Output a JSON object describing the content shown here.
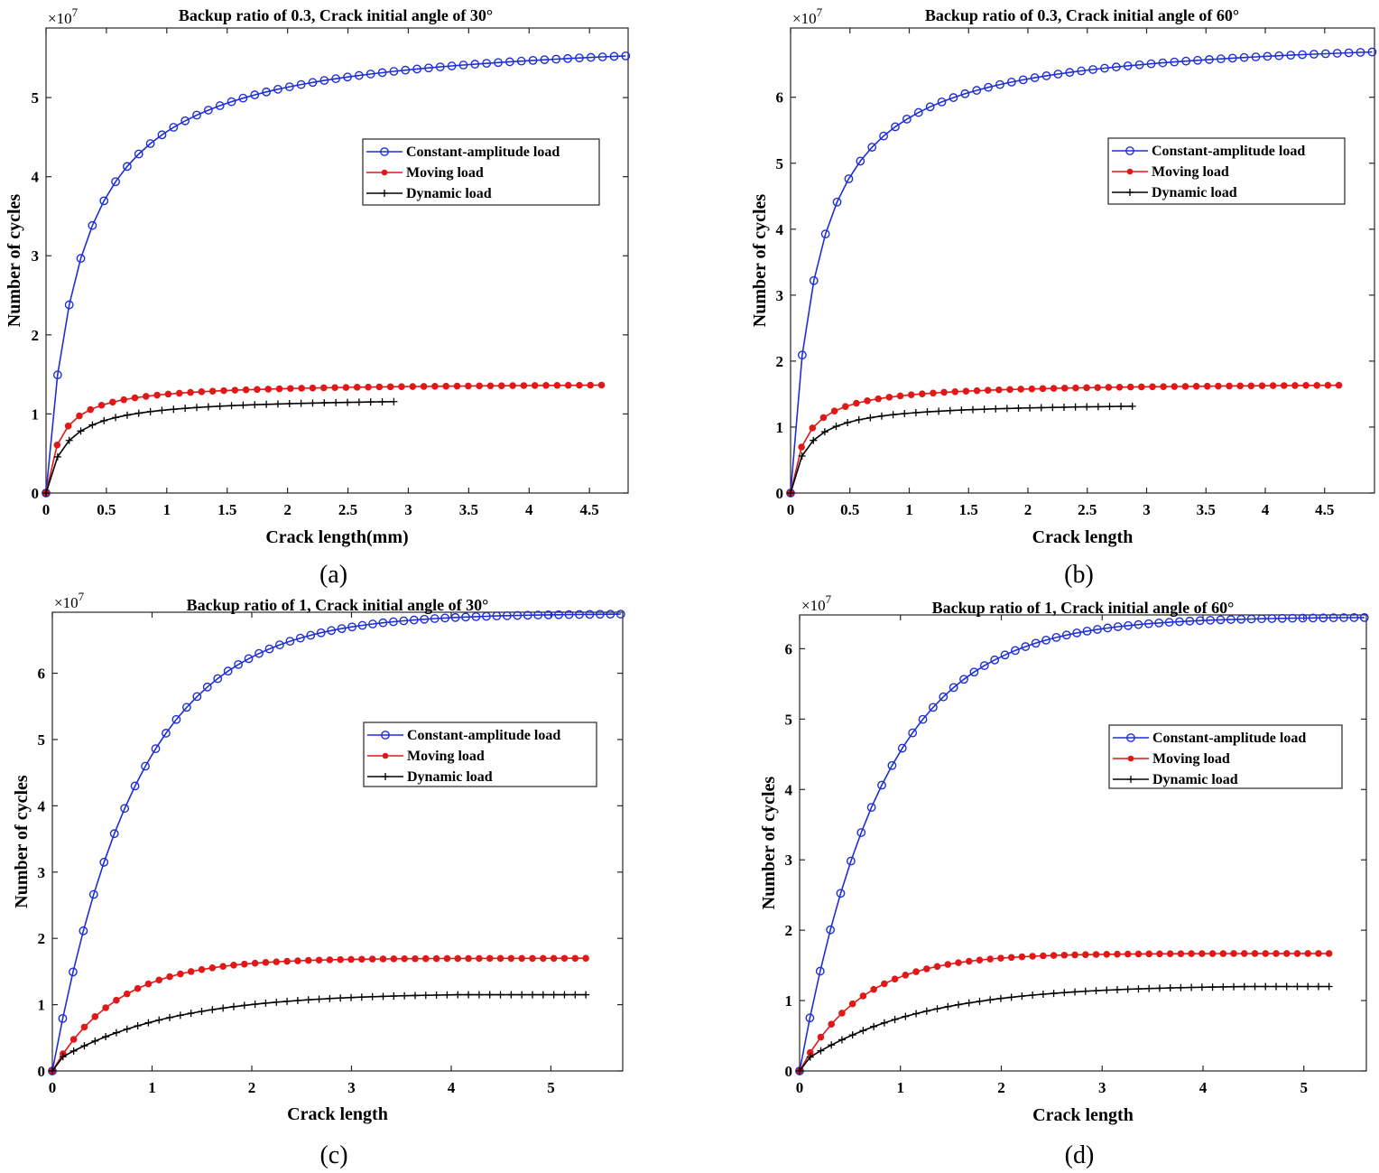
{
  "chart_data": [
    {
      "id": "a",
      "type": "line",
      "title": "Backup ratio of 0.3, Crack initial angle of 30°",
      "xlabel": "Crack length(mm)",
      "ylabel": "Number of cycles",
      "y_multiplier_label": "×10",
      "y_multiplier_exp": "7",
      "caption": "(a)",
      "xlim": [
        0,
        4.82
      ],
      "ylim": [
        0,
        5.88
      ],
      "xticks": [
        0,
        0.5,
        1,
        1.5,
        2,
        2.5,
        3,
        3.5,
        4,
        4.5
      ],
      "xtick_labels": [
        "0",
        "0.5",
        "1",
        "1.5",
        "2",
        "2.5",
        "3",
        "3.5",
        "4",
        "4.5"
      ],
      "yticks": [
        0,
        1,
        2,
        3,
        4,
        5
      ],
      "ytick_labels": [
        "0",
        "1",
        "2",
        "3",
        "4",
        "5"
      ],
      "legend": [
        "Constant-amplitude load",
        "Moving load",
        "Dynamic load"
      ],
      "legend_position": "upper-right",
      "series": [
        {
          "name": "Constant-amplitude load",
          "color": "#1f2fd6",
          "marker": "circle",
          "x_end": 4.8,
          "n": 50,
          "y_final": 5.85,
          "tau": 0.28,
          "shape": "hyperbolic",
          "y0": 0
        },
        {
          "name": "Moving load",
          "color": "#e01818",
          "marker": "dot",
          "x_end": 4.6,
          "n": 50,
          "y_final": 1.4,
          "tau": 0.12,
          "shape": "hyperbolic",
          "y0": 0
        },
        {
          "name": "Dynamic load",
          "color": "#000000",
          "marker": "plus",
          "x_end": 2.88,
          "n": 30,
          "y_final": 1.22,
          "tau": 0.16,
          "shape": "hyperbolic",
          "y0": 0
        }
      ]
    },
    {
      "id": "b",
      "type": "line",
      "title": "Backup ratio of 0.3, Crack initial angle of 60°",
      "xlabel": "Crack length",
      "ylabel": "Number of cycles",
      "y_multiplier_label": "×10",
      "y_multiplier_exp": "7",
      "caption": "(b)",
      "xlim": [
        0,
        4.92
      ],
      "ylim": [
        0,
        7.05
      ],
      "xticks": [
        0,
        0.5,
        1,
        1.5,
        2,
        2.5,
        3,
        3.5,
        4,
        4.5
      ],
      "xtick_labels": [
        "0",
        "0.5",
        "1",
        "1.5",
        "2",
        "2.5",
        "3",
        "3.5",
        "4",
        "4.5"
      ],
      "yticks": [
        0,
        1,
        2,
        3,
        4,
        5,
        6
      ],
      "ytick_labels": [
        "0",
        "1",
        "2",
        "3",
        "4",
        "5",
        "6"
      ],
      "legend": [
        "Constant-amplitude load",
        "Moving load",
        "Dynamic load"
      ],
      "legend_position": "upper-right",
      "series": [
        {
          "name": "Constant-amplitude load",
          "color": "#1f2fd6",
          "marker": "circle",
          "x_end": 4.9,
          "n": 50,
          "y_final": 7.0,
          "tau": 0.23,
          "shape": "hyperbolic",
          "y0": 0
        },
        {
          "name": "Moving load",
          "color": "#e01818",
          "marker": "dot",
          "x_end": 4.62,
          "n": 50,
          "y_final": 1.68,
          "tau": 0.13,
          "shape": "hyperbolic",
          "y0": 0
        },
        {
          "name": "Dynamic load",
          "color": "#000000",
          "marker": "plus",
          "x_end": 2.88,
          "n": 30,
          "y_final": 1.38,
          "tau": 0.14,
          "shape": "hyperbolic",
          "y0": 0
        }
      ]
    },
    {
      "id": "c",
      "type": "line",
      "title": "Backup ratio of 1, Crack initial angle of 30°",
      "xlabel": "Crack length",
      "ylabel": "Number of cycles",
      "y_multiplier_label": "×10",
      "y_multiplier_exp": "7",
      "caption": "(c)",
      "xlim": [
        0,
        5.72
      ],
      "ylim": [
        0,
        6.92
      ],
      "xticks": [
        0,
        1,
        2,
        3,
        4,
        5
      ],
      "xtick_labels": [
        "0",
        "1",
        "2",
        "3",
        "4",
        "5"
      ],
      "yticks": [
        0,
        1,
        2,
        3,
        4,
        5,
        6
      ],
      "ytick_labels": [
        "0",
        "1",
        "2",
        "3",
        "4",
        "5",
        "6"
      ],
      "legend": [
        "Constant-amplitude load",
        "Moving load",
        "Dynamic load"
      ],
      "legend_position": "upper-right",
      "series": [
        {
          "name": "Constant-amplitude load",
          "color": "#1f2fd6",
          "marker": "circle",
          "x_end": 5.7,
          "n": 55,
          "y_final": 6.9,
          "tau": 0.85,
          "shape": "exponential",
          "y0": 0
        },
        {
          "name": "Moving load",
          "color": "#e01818",
          "marker": "dot",
          "x_end": 5.35,
          "n": 50,
          "y_final": 1.7,
          "tau": 0.65,
          "shape": "exponential",
          "y0": 0
        },
        {
          "name": "Dynamic load",
          "color": "#000000",
          "marker": "plus",
          "x_end": 5.35,
          "n": 50,
          "y_final": 1.15,
          "tau": 1.2,
          "shape": "exponential",
          "y0": 0.12
        }
      ]
    },
    {
      "id": "d",
      "type": "line",
      "title": "Backup ratio of 1, Crack initial angle of 60°",
      "xlabel": "Crack length",
      "ylabel": "Number of cycles",
      "y_multiplier_label": "×10",
      "y_multiplier_exp": "7",
      "caption": "(d)",
      "xlim": [
        0,
        5.62
      ],
      "ylim": [
        0,
        6.48
      ],
      "xticks": [
        0,
        1,
        2,
        3,
        4,
        5
      ],
      "xtick_labels": [
        "0",
        "1",
        "2",
        "3",
        "4",
        "5"
      ],
      "yticks": [
        0,
        1,
        2,
        3,
        4,
        5,
        6
      ],
      "ytick_labels": [
        "0",
        "1",
        "2",
        "3",
        "4",
        "5",
        "6"
      ],
      "legend": [
        "Constant-amplitude load",
        "Moving load",
        "Dynamic load"
      ],
      "legend_position": "upper-right",
      "series": [
        {
          "name": "Constant-amplitude load",
          "color": "#1f2fd6",
          "marker": "circle",
          "x_end": 5.6,
          "n": 55,
          "y_final": 6.45,
          "tau": 0.82,
          "shape": "exponential",
          "y0": 0
        },
        {
          "name": "Moving load",
          "color": "#e01818",
          "marker": "dot",
          "x_end": 5.25,
          "n": 50,
          "y_final": 1.67,
          "tau": 0.62,
          "shape": "exponential",
          "y0": 0
        },
        {
          "name": "Dynamic load",
          "color": "#000000",
          "marker": "plus",
          "x_end": 5.25,
          "n": 50,
          "y_final": 1.2,
          "tau": 1.2,
          "shape": "exponential",
          "y0": 0.1
        }
      ]
    }
  ]
}
